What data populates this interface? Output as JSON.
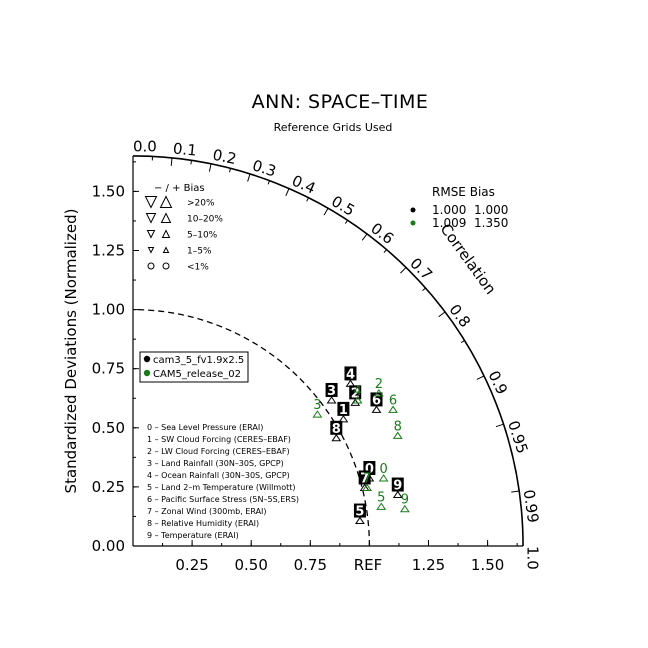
{
  "chart_data": {
    "type": "taylor-diagram",
    "title": "ANN: SPACE–TIME",
    "subtitle": "Reference Grids Used",
    "ylabel": "Standardized Deviations (Normalized)",
    "correlation_label": "Correlation",
    "ref_label": "REF",
    "xlim": [
      0,
      1.65
    ],
    "ylim": [
      0,
      1.65
    ],
    "x_ticks": [
      "0.25",
      "0.50",
      "0.75",
      "1.25",
      "1.50"
    ],
    "x_tick_values": [
      0.25,
      0.5,
      0.75,
      1.25,
      1.5
    ],
    "y_ticks": [
      "0.00",
      "0.25",
      "0.50",
      "0.75",
      "1.00",
      "1.25",
      "1.50"
    ],
    "y_tick_values": [
      0,
      0.25,
      0.5,
      0.75,
      1.0,
      1.25,
      1.5
    ],
    "corr_ticks_major": [
      "0.0",
      "0.1",
      "0.2",
      "0.3",
      "0.4",
      "0.5",
      "0.6",
      "0.7",
      "0.8",
      "0.9",
      "0.95",
      "0.99",
      "1.0"
    ],
    "corr_tick_values": [
      0,
      0.1,
      0.2,
      0.3,
      0.4,
      0.5,
      0.6,
      0.7,
      0.8,
      0.9,
      0.95,
      0.99,
      1.0
    ],
    "reference_arc_radius": 1.0,
    "bias_legend": {
      "header": "− / +     Bias",
      "rows": [
        ">20%",
        "10–20%",
        "5–10%",
        "1–5%",
        "<1%"
      ]
    },
    "rmse_bias_table": {
      "header": "RMSE  Bias",
      "rows": [
        {
          "rmse": "1.000",
          "bias": "1.000",
          "color": "#000000"
        },
        {
          "rmse": "1.009",
          "bias": "1.350",
          "color": "#1a7a1a"
        }
      ]
    },
    "series": [
      {
        "name": "cam3_5_fv1.9x2.5",
        "color": "#000000",
        "points": [
          {
            "id": "0",
            "x": 1.0,
            "y": 0.33
          },
          {
            "id": "1",
            "x": 0.89,
            "y": 0.58
          },
          {
            "id": "2",
            "x": 0.94,
            "y": 0.65
          },
          {
            "id": "3",
            "x": 0.84,
            "y": 0.66
          },
          {
            "id": "4",
            "x": 0.92,
            "y": 0.73
          },
          {
            "id": "5",
            "x": 0.96,
            "y": 0.15
          },
          {
            "id": "6",
            "x": 1.03,
            "y": 0.62
          },
          {
            "id": "7",
            "x": 0.98,
            "y": 0.29
          },
          {
            "id": "8",
            "x": 0.86,
            "y": 0.5
          },
          {
            "id": "9",
            "x": 1.12,
            "y": 0.26
          }
        ]
      },
      {
        "name": "CAM5_release_02",
        "color": "#1a7a1a",
        "points": [
          {
            "id": "0",
            "x": 1.06,
            "y": 0.33
          },
          {
            "id": "2",
            "x": 1.04,
            "y": 0.69
          },
          {
            "id": "3",
            "x": 0.78,
            "y": 0.6
          },
          {
            "id": "4",
            "x": 0.95,
            "y": 0.66
          },
          {
            "id": "5",
            "x": 1.05,
            "y": 0.21
          },
          {
            "id": "6",
            "x": 1.1,
            "y": 0.62
          },
          {
            "id": "7",
            "x": 0.99,
            "y": 0.29
          },
          {
            "id": "8",
            "x": 1.12,
            "y": 0.51
          },
          {
            "id": "9",
            "x": 1.15,
            "y": 0.2
          }
        ]
      }
    ],
    "variables": [
      "0 – Sea Level Pressure (ERAI)",
      "1 – SW Cloud Forcing (CERES–EBAF)",
      "2 – LW Cloud Forcing (CERES–EBAF)",
      "3 – Land Rainfall (30N–30S, GPCP)",
      "4 – Ocean Rainfall (30N–30S, GPCP)",
      "5 – Land 2–m Temperature (Willmott)",
      "6 – Pacific Surface Stress (5N–5S,ERS)",
      "7 – Zonal Wind (300mb, ERAI)",
      "8 – Relative Humidity (ERAI)",
      "9 – Temperature (ERAI)"
    ]
  }
}
